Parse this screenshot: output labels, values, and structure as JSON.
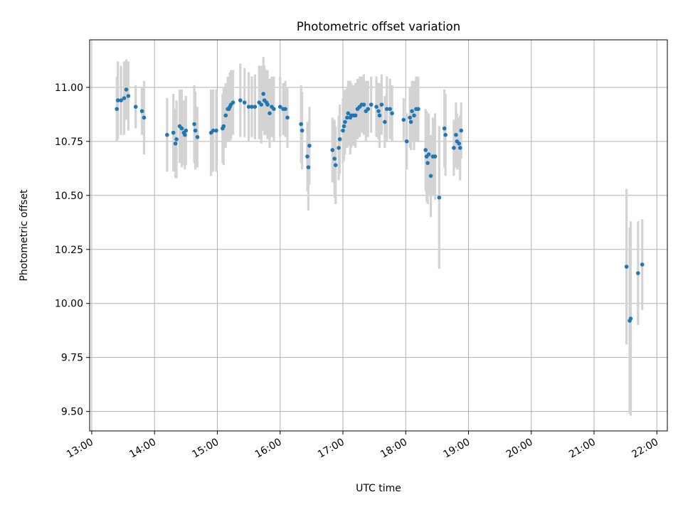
{
  "chart_data": {
    "type": "scatter",
    "title": "Photometric offset variation",
    "xlabel": "UTC time",
    "ylabel": "Photometric offset",
    "xlim": [
      "12:58",
      "22:10"
    ],
    "ylim": [
      9.41,
      11.22
    ],
    "x_ticks": [
      "13:00",
      "14:00",
      "15:00",
      "16:00",
      "17:00",
      "18:00",
      "19:00",
      "20:00",
      "21:00",
      "22:00"
    ],
    "y_ticks": [
      9.5,
      9.75,
      10.0,
      10.25,
      10.5,
      10.75,
      11.0
    ],
    "grid": true,
    "point_color": "#1f77b4",
    "errorbar_color": "#d3d3d3",
    "series": [
      {
        "points": [
          [
            "13:24",
            10.9,
            0.15
          ],
          [
            "13:25",
            10.94,
            0.18
          ],
          [
            "13:28",
            10.94,
            0.16
          ],
          [
            "13:31",
            10.95,
            0.17
          ],
          [
            "13:33",
            10.99,
            0.14
          ],
          [
            "13:35",
            10.96,
            0.16
          ],
          [
            "13:42",
            10.91,
            0.1
          ],
          [
            "13:48",
            10.89,
            0.11
          ],
          [
            "13:50",
            10.86,
            0.17
          ],
          [
            "14:12",
            10.78,
            0.17
          ],
          [
            "14:18",
            10.79,
            0.18
          ],
          [
            "14:20",
            10.74,
            0.16
          ],
          [
            "14:21",
            10.76,
            0.18
          ],
          [
            "14:24",
            10.82,
            0.17
          ],
          [
            "14:26",
            10.81,
            0.18
          ],
          [
            "14:28",
            10.79,
            0.15
          ],
          [
            "14:29",
            10.78,
            0.16
          ],
          [
            "14:30",
            10.8,
            0.16
          ],
          [
            "14:38",
            10.83,
            0.18
          ],
          [
            "14:39",
            10.8,
            0.18
          ],
          [
            "14:41",
            10.77,
            0.14
          ],
          [
            "14:54",
            10.79,
            0.2
          ],
          [
            "14:56",
            10.8,
            0.19
          ],
          [
            "14:59",
            10.8,
            0.19
          ],
          [
            "15:05",
            10.81,
            0.16
          ],
          [
            "15:06",
            10.82,
            0.18
          ],
          [
            "15:08",
            10.87,
            0.15
          ],
          [
            "15:10",
            10.9,
            0.15
          ],
          [
            "15:11",
            10.9,
            0.13
          ],
          [
            "15:12",
            10.91,
            0.16
          ],
          [
            "15:13",
            10.92,
            0.16
          ],
          [
            "15:15",
            10.93,
            0.15
          ],
          [
            "15:22",
            10.94,
            0.17
          ],
          [
            "15:26",
            10.93,
            0.16
          ],
          [
            "15:30",
            10.91,
            0.16
          ],
          [
            "15:33",
            10.91,
            0.14
          ],
          [
            "15:36",
            10.91,
            0.15
          ],
          [
            "15:40",
            10.93,
            0.17
          ],
          [
            "15:42",
            10.92,
            0.18
          ],
          [
            "15:44",
            10.97,
            0.17
          ],
          [
            "15:45",
            10.94,
            0.16
          ],
          [
            "15:47",
            10.93,
            0.15
          ],
          [
            "15:48",
            10.92,
            0.16
          ],
          [
            "15:50",
            10.88,
            0.16
          ],
          [
            "15:52",
            10.91,
            0.14
          ],
          [
            "15:54",
            10.9,
            0.15
          ],
          [
            "16:00",
            10.91,
            0.14
          ],
          [
            "16:03",
            10.9,
            0.12
          ],
          [
            "16:05",
            10.9,
            0.13
          ],
          [
            "16:07",
            10.86,
            0.14
          ],
          [
            "16:20",
            10.83,
            0.18
          ],
          [
            "16:21",
            10.8,
            0.18
          ],
          [
            "16:26",
            10.68,
            0.16
          ],
          [
            "16:27",
            10.63,
            0.2
          ],
          [
            "16:28",
            10.73,
            0.18
          ],
          [
            "16:50",
            10.71,
            0.15
          ],
          [
            "16:52",
            10.67,
            0.18
          ],
          [
            "16:53",
            10.64,
            0.18
          ],
          [
            "16:56",
            10.72,
            0.15
          ],
          [
            "16:57",
            10.76,
            0.16
          ],
          [
            "17:00",
            10.8,
            0.15
          ],
          [
            "17:01",
            10.82,
            0.16
          ],
          [
            "17:02",
            10.84,
            0.15
          ],
          [
            "17:04",
            10.86,
            0.14
          ],
          [
            "17:05",
            10.88,
            0.15
          ],
          [
            "17:07",
            10.86,
            0.17
          ],
          [
            "17:08",
            10.87,
            0.15
          ],
          [
            "17:10",
            10.87,
            0.14
          ],
          [
            "17:12",
            10.87,
            0.15
          ],
          [
            "17:14",
            10.9,
            0.14
          ],
          [
            "17:16",
            10.91,
            0.14
          ],
          [
            "17:18",
            10.92,
            0.13
          ],
          [
            "17:20",
            10.92,
            0.14
          ],
          [
            "17:22",
            10.89,
            0.14
          ],
          [
            "17:24",
            10.9,
            0.13
          ],
          [
            "17:27",
            10.92,
            0.13
          ],
          [
            "17:32",
            10.91,
            0.14
          ],
          [
            "17:34",
            10.89,
            0.13
          ],
          [
            "17:35",
            10.87,
            0.15
          ],
          [
            "17:37",
            10.92,
            0.14
          ],
          [
            "17:40",
            10.84,
            0.12
          ],
          [
            "17:42",
            10.9,
            0.15
          ],
          [
            "17:45",
            10.9,
            0.14
          ],
          [
            "17:47",
            10.88,
            0.13
          ],
          [
            "17:58",
            10.85,
            0.1
          ],
          [
            "18:01",
            10.75,
            0.13
          ],
          [
            "18:04",
            10.86,
            0.14
          ],
          [
            "18:05",
            10.84,
            0.13
          ],
          [
            "18:06",
            10.89,
            0.14
          ],
          [
            "18:08",
            10.87,
            0.16
          ],
          [
            "18:10",
            10.9,
            0.15
          ],
          [
            "18:12",
            10.9,
            0.15
          ],
          [
            "18:19",
            10.71,
            0.19
          ],
          [
            "18:20",
            10.68,
            0.21
          ],
          [
            "18:21",
            10.65,
            0.19
          ],
          [
            "18:22",
            10.69,
            0.19
          ],
          [
            "18:24",
            10.59,
            0.19
          ],
          [
            "18:26",
            10.68,
            0.18
          ],
          [
            "18:28",
            10.68,
            0.2
          ],
          [
            "18:32",
            10.49,
            0.33
          ],
          [
            "18:37",
            10.81,
            0.18
          ],
          [
            "18:38",
            10.78,
            0.19
          ],
          [
            "18:46",
            10.72,
            0.13
          ],
          [
            "18:48",
            10.78,
            0.15
          ],
          [
            "18:49",
            10.75,
            0.13
          ],
          [
            "18:51",
            10.74,
            0.12
          ],
          [
            "18:52",
            10.72,
            0.15
          ],
          [
            "18:53",
            10.8,
            0.13
          ],
          [
            "21:31",
            10.17,
            0.36
          ],
          [
            "21:34",
            9.92,
            0.43
          ],
          [
            "21:35",
            9.93,
            0.45
          ],
          [
            "21:42",
            10.14,
            0.24
          ],
          [
            "21:46",
            10.18,
            0.21
          ]
        ]
      }
    ]
  }
}
